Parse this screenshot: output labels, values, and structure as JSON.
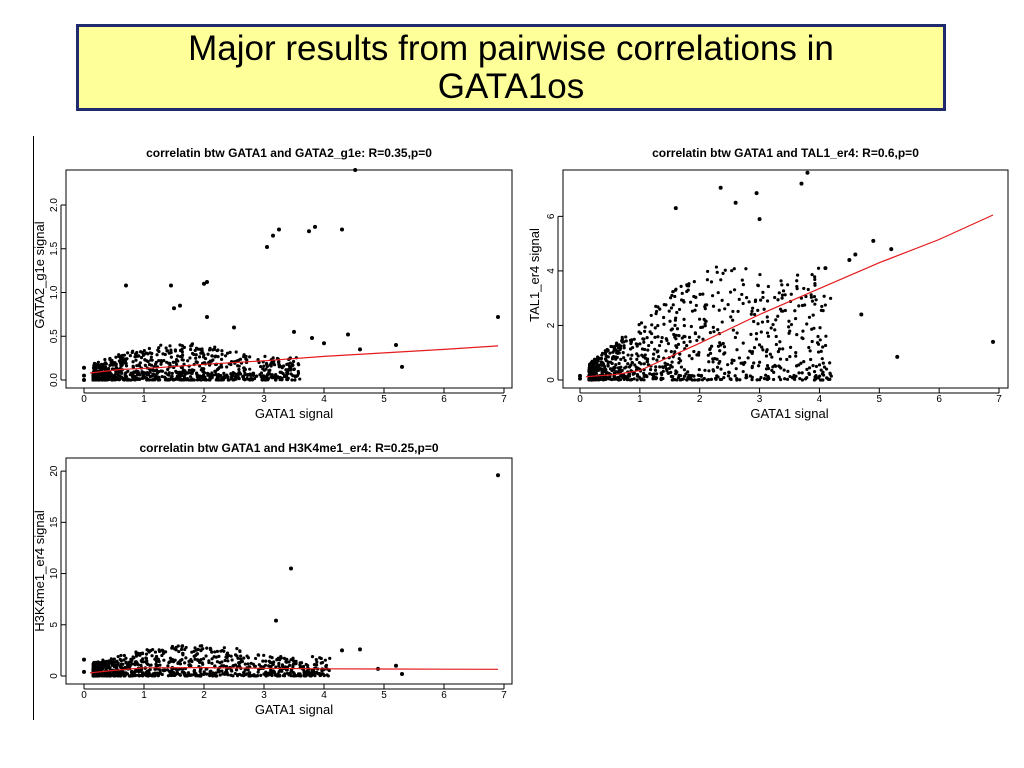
{
  "slide": {
    "title": "Major results from pairwise correlations in GATA1os"
  },
  "colors": {
    "title_bg": "#ffff99",
    "title_border": "#1f2b6e",
    "points": "#000000",
    "trend": "#e41a1c"
  },
  "chart_data": [
    {
      "type": "scatter",
      "title": "correlatin btw GATA1 and GATA2_g1e: R=0.35,p=0",
      "xlabel": "GATA1 signal",
      "ylabel": "GATA2_g1e signal",
      "xlim": [
        0,
        7
      ],
      "ylim": [
        0,
        2.4
      ],
      "xticks": [
        0,
        1,
        2,
        3,
        4,
        5,
        6,
        7
      ],
      "yticks": [
        0.0,
        0.5,
        1.0,
        1.5,
        2.0
      ],
      "ytick_labels": [
        "0.0",
        "0.5",
        "1.0",
        "1.5",
        "2.0"
      ],
      "grid": false,
      "series": [
        {
          "points": [
            [
              4.52,
              2.4
            ],
            [
              3.15,
              1.65
            ],
            [
              3.25,
              1.72
            ],
            [
              3.05,
              1.52
            ],
            [
              3.85,
              1.75
            ],
            [
              3.75,
              1.7
            ],
            [
              4.3,
              1.72
            ],
            [
              6.9,
              0.72
            ],
            [
              2.05,
              1.12
            ],
            [
              2.0,
              1.1
            ],
            [
              1.45,
              1.08
            ],
            [
              0.7,
              1.08
            ],
            [
              1.6,
              0.85
            ],
            [
              1.5,
              0.82
            ],
            [
              2.05,
              0.72
            ],
            [
              2.5,
              0.6
            ],
            [
              3.5,
              0.55
            ],
            [
              4.4,
              0.52
            ],
            [
              5.2,
              0.4
            ],
            [
              5.3,
              0.15
            ],
            [
              4.6,
              0.35
            ],
            [
              4.0,
              0.42
            ],
            [
              3.8,
              0.48
            ],
            [
              0.0,
              0.14
            ],
            [
              0.0,
              0.05
            ],
            [
              0.0,
              0.0
            ]
          ]
        }
      ],
      "trend": [
        [
          0.1,
          0.08
        ],
        [
          0.6,
          0.12
        ],
        [
          1.2,
          0.14
        ],
        [
          2.0,
          0.18
        ],
        [
          3.0,
          0.22
        ],
        [
          4.0,
          0.27
        ],
        [
          5.0,
          0.31
        ],
        [
          6.0,
          0.35
        ],
        [
          6.9,
          0.39
        ]
      ],
      "cloud": {
        "xmax": 3.6,
        "ypeak": 0.42,
        "ydecay": 0.12
      }
    },
    {
      "type": "scatter",
      "title": "correlatin btw GATA1 and TAL1_er4: R=0.6,p=0",
      "xlabel": "GATA1 signal",
      "ylabel": "TAL1_er4 signal",
      "xlim": [
        0,
        7
      ],
      "ylim": [
        0,
        7.7
      ],
      "xticks": [
        0,
        1,
        2,
        3,
        4,
        5,
        6,
        7
      ],
      "yticks": [
        0,
        2,
        4,
        6
      ],
      "ytick_labels": [
        "0",
        "2",
        "4",
        "6"
      ],
      "grid": false,
      "series": [
        {
          "points": [
            [
              3.8,
              7.6
            ],
            [
              3.7,
              7.2
            ],
            [
              2.35,
              7.05
            ],
            [
              2.95,
              6.85
            ],
            [
              1.6,
              6.3
            ],
            [
              2.6,
              6.5
            ],
            [
              3.0,
              5.9
            ],
            [
              4.9,
              5.1
            ],
            [
              5.2,
              4.8
            ],
            [
              4.6,
              4.6
            ],
            [
              4.5,
              4.4
            ],
            [
              4.1,
              4.1
            ],
            [
              4.7,
              2.4
            ],
            [
              5.3,
              0.85
            ],
            [
              6.9,
              1.4
            ],
            [
              0.0,
              0.15
            ],
            [
              0.0,
              0.05
            ]
          ]
        }
      ],
      "trend": [
        [
          0.1,
          0.12
        ],
        [
          0.6,
          0.2
        ],
        [
          1.0,
          0.35
        ],
        [
          1.4,
          0.75
        ],
        [
          2.0,
          1.35
        ],
        [
          3.0,
          2.4
        ],
        [
          4.0,
          3.35
        ],
        [
          5.0,
          4.3
        ],
        [
          6.0,
          5.15
        ],
        [
          6.9,
          6.05
        ]
      ],
      "cloud": {
        "xmax": 4.2,
        "ypeak": 5.4,
        "ydecay": 1.2
      }
    },
    {
      "type": "scatter",
      "title": "correlatin btw GATA1 and H3K4me1_er4: R=0.25,p=0",
      "xlabel": "GATA1 signal",
      "ylabel": "H3K4me1_er4 signal",
      "xlim": [
        0,
        7
      ],
      "ylim": [
        0,
        20.5
      ],
      "xticks": [
        0,
        1,
        2,
        3,
        4,
        5,
        6,
        7
      ],
      "yticks": [
        0,
        5,
        10,
        15,
        20
      ],
      "ytick_labels": [
        "0",
        "5",
        "10",
        "15",
        "20"
      ],
      "grid": false,
      "series": [
        {
          "points": [
            [
              6.9,
              19.6
            ],
            [
              3.45,
              10.5
            ],
            [
              3.2,
              5.4
            ],
            [
              4.6,
              2.6
            ],
            [
              4.3,
              2.5
            ],
            [
              5.2,
              1.0
            ],
            [
              4.9,
              0.7
            ],
            [
              5.3,
              0.2
            ],
            [
              0.0,
              1.6
            ],
            [
              0.0,
              0.4
            ]
          ]
        }
      ],
      "trend": [
        [
          0.1,
          0.3
        ],
        [
          0.5,
          0.55
        ],
        [
          1.0,
          0.8
        ],
        [
          2.0,
          0.82
        ],
        [
          3.0,
          0.75
        ],
        [
          4.0,
          0.7
        ],
        [
          5.0,
          0.68
        ],
        [
          6.0,
          0.66
        ],
        [
          6.9,
          0.65
        ]
      ],
      "cloud": {
        "xmax": 4.1,
        "ypeak": 3.0,
        "ydecay": 0.6
      }
    }
  ]
}
